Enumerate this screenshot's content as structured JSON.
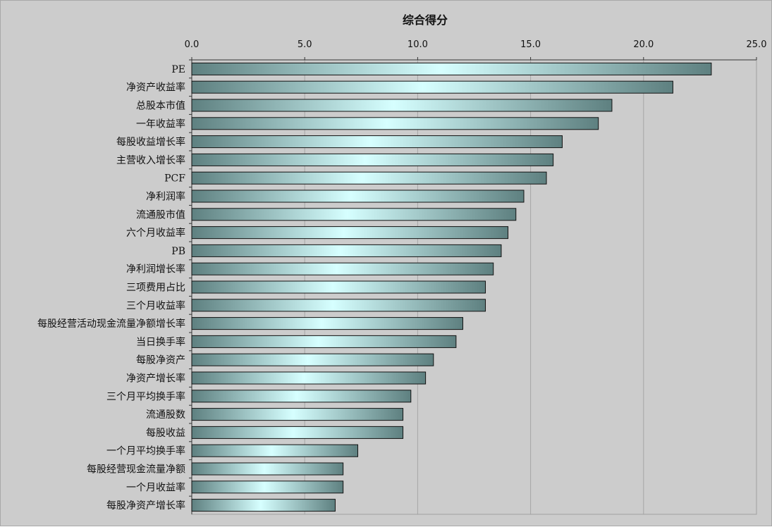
{
  "chart_data": {
    "type": "bar",
    "orientation": "horizontal",
    "title": "综合得分",
    "xlabel": "",
    "ylabel": "",
    "xlim": [
      0,
      25
    ],
    "ticks": [
      "0.0",
      "5.0",
      "10.0",
      "15.0",
      "20.0",
      "25.0"
    ],
    "tick_values": [
      0,
      5,
      10,
      15,
      20,
      25
    ],
    "axis_position": "top",
    "grid": true,
    "legend": "none",
    "categories": [
      "PE",
      "净资产收益率",
      "总股本市值",
      "一年收益率",
      "每股收益增长率",
      "主营收入增长率",
      "PCF",
      "净利润率",
      "流通股市值",
      "六个月收益率",
      "PB",
      "净利润增长率",
      "三项费用占比",
      "三个月收益率",
      "每股经营活动现金流量净额增长率",
      "当日换手率",
      "每股净资产",
      "净资产增长率",
      "三个月平均换手率",
      "流通股数",
      "每股收益",
      "一个月平均换手率",
      "每股经营现金流量净额",
      "一个月收益率",
      "每股净资产增长率"
    ],
    "values": [
      23.0,
      21.3,
      18.6,
      18.0,
      16.4,
      16.0,
      15.7,
      14.7,
      14.35,
      14.0,
      13.7,
      13.35,
      13.0,
      13.0,
      12.0,
      11.7,
      10.7,
      10.35,
      9.7,
      9.35,
      9.35,
      7.35,
      6.7,
      6.7,
      6.35
    ],
    "colors": {
      "background": "#cccccc",
      "grid": "#a6a6a6",
      "bar_edge": "#5e8080",
      "bar_center": "#d6ffff",
      "bar_outline": "#111111"
    }
  }
}
